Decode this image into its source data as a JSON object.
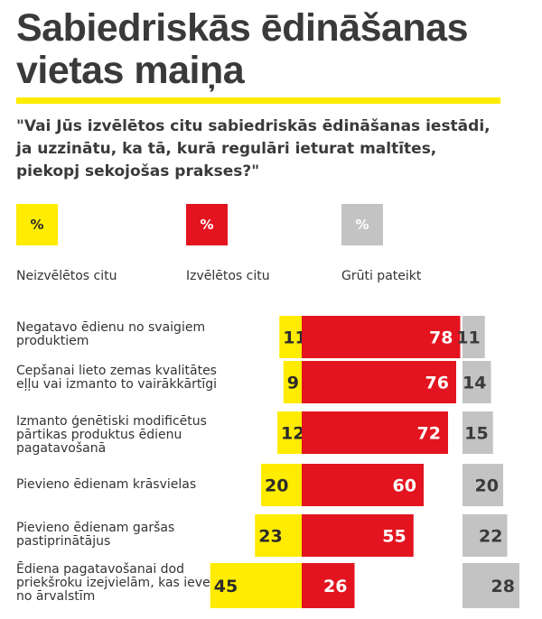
{
  "header": {
    "title": "Sabiedriskās ēdināšanas vietas maiņa",
    "question": "\"Vai Jūs izvēlētos citu sabiedriskās ēdināšanas iestādi, ja uzzinātu, ka tā, kurā regulāri ieturat maltītes, piekopj sekojošas prakses?\""
  },
  "legend": [
    {
      "symbol": "%",
      "label": "Neizvēlētos citu",
      "color": "#ffec00",
      "text_color": "#2b2b2b"
    },
    {
      "symbol": "%",
      "label": "Izvēlētos citu",
      "color": "#e3141f",
      "text_color": "#ffffff"
    },
    {
      "symbol": "%",
      "label": "Grūti pateikt",
      "color": "#c3c3c3",
      "text_color": "#ffffff"
    }
  ],
  "chart_data": {
    "type": "bar",
    "stacking": "diverging",
    "categories": [
      "Negatavo ēdienu no svaigiem produktiem",
      "Cepšanai lieto zemas kvalitātes eļļu vai izmanto to vairākkārtīgi",
      "Izmanto ģenētiski modificētus pārtikas produktus ēdienu pagatavošanā",
      "Pievieno ēdienam krāsvielas",
      "Pievieno ēdienam garšas pastiprinātājus",
      "Ēdiena pagatavošanai dod priekšroku izejvielām, kas ievestas no ārvalstīm"
    ],
    "series": [
      {
        "name": "Neizvēlētos citu",
        "values": [
          11,
          9,
          12,
          20,
          23,
          45
        ],
        "color": "#ffec00"
      },
      {
        "name": "Izvēlētos citu",
        "values": [
          78,
          76,
          72,
          60,
          55,
          26
        ],
        "color": "#e3141f"
      },
      {
        "name": "Grūti pateikt",
        "values": [
          11,
          14,
          15,
          20,
          22,
          28
        ],
        "color": "#c3c3c3"
      }
    ],
    "unit": "%"
  }
}
